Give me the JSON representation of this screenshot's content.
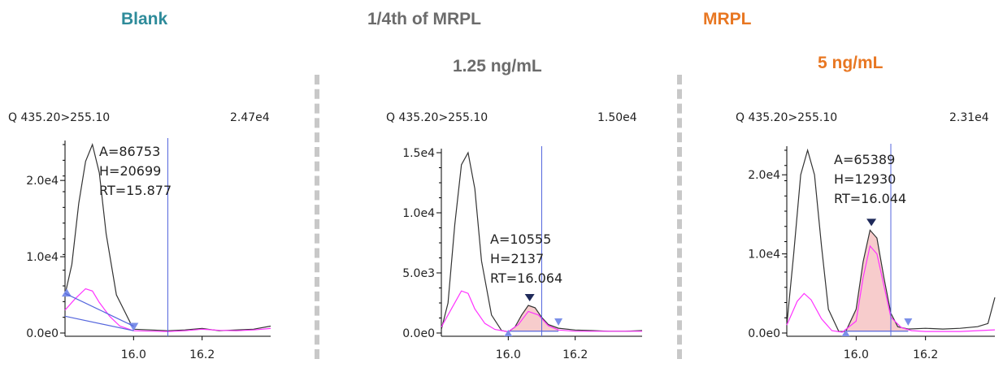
{
  "colors": {
    "blank_title": "#2e8b9a",
    "mid_title": "#6b6b6b",
    "mrpl_title": "#e87722",
    "trace_main": "#333333",
    "trace_secondary": "#ff33ff",
    "marker": "#7b8fe8",
    "marker_dark": "#1f2a5a",
    "rt_line": "#5566dd",
    "peak_fill": "#f6c7c7",
    "divider": "#c8c8c8"
  },
  "headers": {
    "blank": "Blank",
    "quarter": "1/4th of MRPL",
    "quarter_conc": "1.25 ng/mL",
    "mrpl": "MRPL",
    "mrpl_conc": "5 ng/mL"
  },
  "chart_data": [
    {
      "type": "line",
      "title": "Blank",
      "transition": "Q 435.20>255.10",
      "max_intensity": "2.47e4",
      "xlim": [
        15.8,
        16.4
      ],
      "ylim": [
        0,
        24700
      ],
      "x_ticks": [
        "16.0",
        "16.2"
      ],
      "y_ticks": [
        "0.0e0",
        "1.0e4",
        "2.0e4"
      ],
      "rt_line": 16.1,
      "annotation": [
        "A=86753",
        "H=20699",
        "RT=15.877"
      ],
      "series": [
        {
          "x": [
            15.8,
            15.82,
            15.84,
            15.86,
            15.88,
            15.9,
            15.92,
            15.95,
            16.0,
            16.05,
            16.1,
            16.15,
            16.2,
            16.25,
            16.3,
            16.35,
            16.4
          ],
          "y": [
            5000,
            9000,
            17000,
            22500,
            24700,
            21000,
            13000,
            5000,
            500,
            400,
            300,
            400,
            600,
            300,
            400,
            500,
            900
          ]
        },
        {
          "x": [
            15.8,
            15.83,
            15.86,
            15.88,
            15.9,
            15.93,
            15.96,
            16.0,
            16.05,
            16.1,
            16.15,
            16.2,
            16.25,
            16.3,
            16.35,
            16.4
          ],
          "y": [
            3000,
            4500,
            5800,
            5500,
            4000,
            2200,
            900,
            300,
            250,
            200,
            300,
            500,
            350,
            300,
            400,
            600
          ]
        }
      ]
    },
    {
      "type": "line",
      "title": "1/4th of MRPL",
      "subtitle": "1.25 ng/mL",
      "transition": "Q 435.20>255.10",
      "max_intensity": "1.50e4",
      "xlim": [
        15.8,
        16.4
      ],
      "ylim": [
        0,
        15000
      ],
      "x_ticks": [
        "16.0",
        "16.2"
      ],
      "y_ticks": [
        "0.0e0",
        "5.0e3",
        "1.0e4",
        "1.5e4"
      ],
      "rt_line": 16.1,
      "annotation": [
        "A=10555",
        "H=2137",
        "RT=16.064"
      ],
      "series": [
        {
          "x": [
            15.8,
            15.82,
            15.84,
            15.86,
            15.88,
            15.9,
            15.92,
            15.95,
            15.98,
            16.0,
            16.02,
            16.04,
            16.06,
            16.08,
            16.1,
            16.12,
            16.15,
            16.2,
            16.25,
            16.3,
            16.35,
            16.4
          ],
          "y": [
            300,
            2500,
            9000,
            14000,
            15000,
            12000,
            6000,
            1500,
            200,
            100,
            500,
            1500,
            2300,
            2100,
            1300,
            700,
            400,
            250,
            200,
            150,
            150,
            200
          ]
        },
        {
          "x": [
            15.8,
            15.83,
            15.86,
            15.88,
            15.9,
            15.93,
            15.96,
            16.0,
            16.03,
            16.06,
            16.09,
            16.12,
            16.15,
            16.2,
            16.3,
            16.4
          ],
          "y": [
            500,
            2000,
            3500,
            3300,
            2000,
            800,
            300,
            100,
            700,
            1800,
            1500,
            600,
            250,
            150,
            150,
            150
          ]
        }
      ],
      "peak_area": [
        16.0,
        16.15
      ]
    },
    {
      "type": "line",
      "title": "MRPL",
      "subtitle": "5 ng/mL",
      "transition": "Q 435.20>255.10",
      "max_intensity": "2.31e4",
      "xlim": [
        15.8,
        16.4
      ],
      "ylim": [
        0,
        23100
      ],
      "x_ticks": [
        "16.0",
        "16.2"
      ],
      "y_ticks": [
        "0.0e0",
        "1.0e4",
        "2.0e4"
      ],
      "rt_line": 16.1,
      "annotation": [
        "A=65389",
        "H=12930",
        "RT=16.044"
      ],
      "series": [
        {
          "x": [
            15.8,
            15.82,
            15.84,
            15.86,
            15.88,
            15.9,
            15.92,
            15.95,
            15.97,
            16.0,
            16.02,
            16.04,
            16.06,
            16.08,
            16.1,
            16.12,
            16.15,
            16.2,
            16.25,
            16.3,
            16.35,
            16.38,
            16.4
          ],
          "y": [
            1000,
            10000,
            20000,
            23100,
            20000,
            11000,
            3000,
            200,
            200,
            3000,
            9000,
            13000,
            12000,
            7000,
            2500,
            800,
            500,
            600,
            500,
            600,
            800,
            1200,
            4500
          ]
        },
        {
          "x": [
            15.8,
            15.83,
            15.85,
            15.87,
            15.9,
            15.93,
            15.96,
            16.0,
            16.02,
            16.04,
            16.06,
            16.08,
            16.1,
            16.13,
            16.16,
            16.2,
            16.3,
            16.4
          ],
          "y": [
            1000,
            4000,
            5000,
            4200,
            1800,
            300,
            100,
            1500,
            7000,
            11000,
            10000,
            6000,
            2000,
            700,
            300,
            200,
            200,
            400
          ]
        }
      ],
      "peak_area": [
        15.97,
        16.15
      ]
    }
  ]
}
